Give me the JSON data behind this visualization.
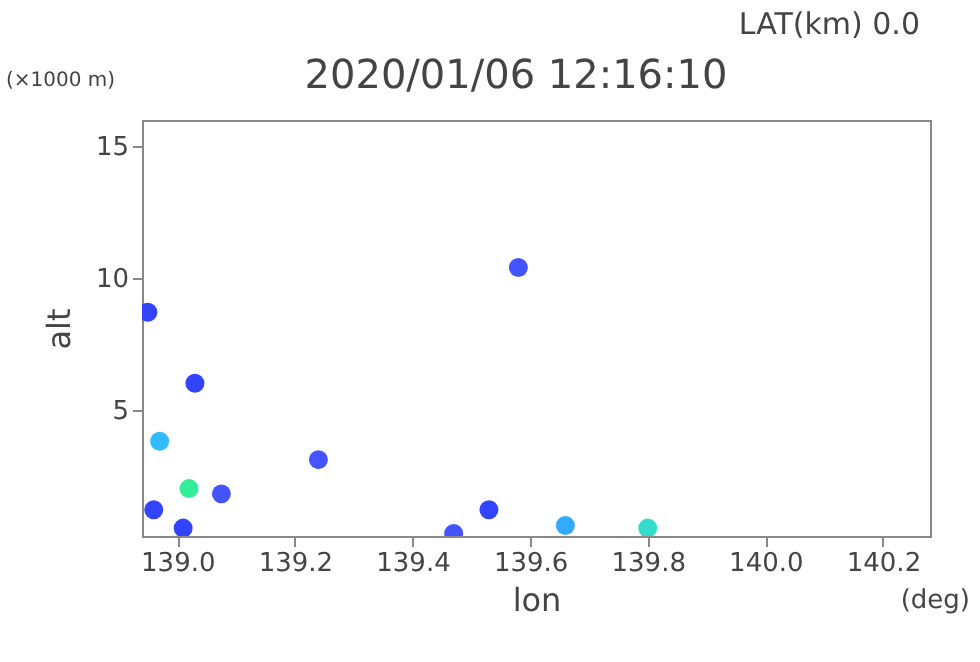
{
  "chart_data": {
    "type": "scatter",
    "title": "2020/01/06 12:16:10",
    "xlabel": "lon",
    "ylabel": "alt",
    "annotations": [
      "LAT(km) 0.0",
      "(×1000 m)",
      "(deg)"
    ],
    "x": [
      138.95,
      139.03,
      138.97,
      139.02,
      138.96,
      139.01,
      139.075,
      139.24,
      139.58,
      139.53,
      139.47,
      139.66,
      139.8
    ],
    "values": [
      8.7,
      6.0,
      3.8,
      2.0,
      1.2,
      0.5,
      1.8,
      3.1,
      10.4,
      1.2,
      0.3,
      0.6,
      0.5
    ],
    "colors": [
      "#3344ff",
      "#3344ff",
      "#33bbff",
      "#33ee99",
      "#3344ff",
      "#3344ff",
      "#4455ff",
      "#4455ff",
      "#4455ff",
      "#3344ff",
      "#4455ff",
      "#33aaff",
      "#33ddcc"
    ],
    "grid": false,
    "legend": false,
    "xlim": [
      138.94,
      140.28
    ],
    "xticks": [
      {
        "value": 139,
        "label": "139.0"
      },
      139.2,
      139.4,
      139.6,
      139.8,
      {
        "value": 140,
        "label": "140.0"
      },
      140.2
    ],
    "ylim": [
      0.2,
      16
    ],
    "yticks": [
      5,
      10,
      15
    ]
  }
}
